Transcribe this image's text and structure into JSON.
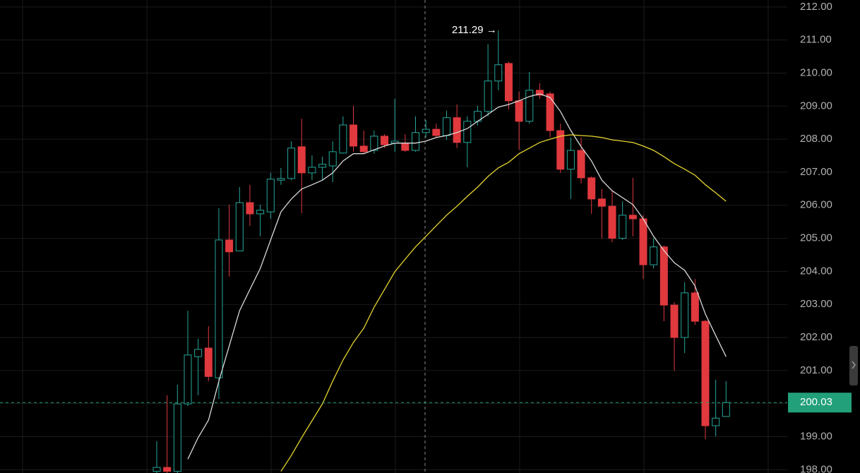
{
  "chart_data": {
    "type": "candlestick",
    "ylim": [
      197.9,
      212.21
    ],
    "yticks": [
      {
        "value": 198,
        "label": "198.00"
      },
      {
        "value": 199,
        "label": "199.00"
      },
      {
        "value": 200,
        "label": "200.00"
      },
      {
        "value": 201,
        "label": "201.00"
      },
      {
        "value": 202,
        "label": "202.00"
      },
      {
        "value": 203,
        "label": "203.00"
      },
      {
        "value": 204,
        "label": "204.00"
      },
      {
        "value": 205,
        "label": "205.00"
      },
      {
        "value": 206,
        "label": "206.00"
      },
      {
        "value": 207,
        "label": "207.00"
      },
      {
        "value": 208,
        "label": "208.00"
      },
      {
        "value": 209,
        "label": "209.00"
      },
      {
        "value": 210,
        "label": "210.00"
      },
      {
        "value": 211,
        "label": "211.00"
      },
      {
        "value": 212,
        "label": "212.00"
      }
    ],
    "grid": true,
    "up_color": "#26a69a",
    "down_color": "#e0393e",
    "open": [
      197.95,
      198.07,
      197.95,
      199.99,
      201.42,
      201.68,
      200.78,
      204.95,
      204.62,
      206.08,
      205.74,
      205.8,
      206.76,
      206.81,
      207.77,
      206.98,
      207.15,
      207.19,
      207.58,
      208.43,
      207.79,
      207.66,
      208.09,
      207.88,
      207.88,
      207.66,
      208.2,
      208.3,
      208.11,
      208.65,
      207.9,
      208.54,
      208.84,
      209.76,
      210.29,
      209.16,
      208.54,
      209.48,
      209.37,
      208.26,
      207.09,
      207.66,
      206.83,
      206.19,
      205.97,
      205.0,
      205.7,
      205.59,
      204.2,
      204.74,
      202.98,
      202.0,
      203.35,
      202.49,
      199.33,
      199.61
    ],
    "high": [
      198.86,
      200.25,
      200.57,
      202.81,
      201.96,
      202.34,
      205.91,
      206.02,
      206.55,
      206.62,
      206.02,
      206.98,
      207.13,
      207.94,
      208.62,
      207.51,
      207.47,
      207.94,
      208.69,
      209.01,
      208.26,
      208.26,
      208.15,
      209.22,
      208.15,
      208.69,
      208.58,
      208.47,
      208.86,
      209.05,
      208.69,
      209.01,
      210.87,
      211.29,
      210.35,
      209.44,
      210.03,
      209.69,
      209.44,
      208.47,
      208.05,
      208.05,
      206.87,
      206.49,
      206.44,
      206.12,
      206.83,
      205.7,
      205.01,
      204.78,
      203.07,
      203.67,
      203.77,
      202.53,
      200.72,
      200.68
    ],
    "low": [
      197.9,
      197.9,
      197.9,
      199.93,
      200.25,
      200.68,
      200.14,
      203.84,
      204.62,
      205.38,
      205.06,
      205.59,
      206.62,
      206.76,
      205.76,
      206.76,
      206.76,
      206.7,
      207.56,
      207.62,
      207.58,
      207.56,
      207.73,
      207.62,
      207.62,
      207.62,
      208.05,
      208.05,
      207.98,
      207.73,
      207.15,
      208.41,
      208.69,
      209.48,
      208.9,
      207.68,
      208.47,
      209.22,
      208.05,
      206.98,
      206.19,
      206.66,
      205.74,
      205.0,
      204.88,
      204.95,
      205.06,
      203.77,
      204.09,
      202.49,
      200.99,
      201.53,
      202.38,
      198.92,
      199.01,
      199.61
    ],
    "close": [
      198.07,
      197.95,
      199.99,
      201.47,
      201.64,
      200.82,
      204.95,
      204.59,
      206.08,
      205.74,
      205.85,
      206.79,
      206.81,
      207.73,
      206.98,
      207.15,
      207.24,
      207.62,
      208.43,
      207.79,
      207.62,
      208.09,
      207.83,
      207.94,
      207.66,
      208.2,
      208.3,
      208.11,
      208.65,
      207.9,
      208.54,
      208.84,
      209.76,
      210.25,
      209.16,
      208.54,
      209.48,
      209.33,
      208.26,
      207.09,
      207.66,
      206.83,
      206.19,
      205.97,
      205.0,
      205.7,
      205.59,
      204.2,
      204.74,
      202.98,
      202.0,
      203.35,
      202.49,
      199.33,
      199.56,
      200.03
    ],
    "lines": [
      {
        "color": "#d9d9d9",
        "values": [
          null,
          null,
          null,
          198.32,
          198.97,
          199.5,
          200.68,
          201.74,
          202.81,
          203.45,
          204.09,
          204.95,
          205.8,
          206.19,
          206.49,
          206.62,
          206.76,
          206.98,
          207.34,
          207.56,
          207.56,
          207.68,
          207.79,
          207.88,
          207.88,
          207.88,
          207.94,
          208.05,
          208.11,
          208.2,
          208.32,
          208.54,
          208.75,
          208.97,
          209.05,
          209.16,
          209.29,
          209.37,
          209.26,
          208.84,
          208.26,
          207.77,
          207.34,
          206.76,
          206.44,
          206.23,
          206.02,
          205.59,
          205.06,
          204.63,
          204.26,
          204.03,
          203.56,
          202.71,
          202.06,
          201.42
        ]
      },
      {
        "color": "#e6d430",
        "values": [
          null,
          null,
          null,
          null,
          null,
          null,
          null,
          null,
          null,
          null,
          null,
          null,
          197.95,
          198.43,
          198.97,
          199.48,
          199.99,
          200.68,
          201.32,
          201.85,
          202.28,
          202.92,
          203.45,
          203.99,
          204.37,
          204.74,
          205.06,
          205.38,
          205.7,
          205.97,
          206.27,
          206.55,
          206.87,
          207.13,
          207.3,
          207.56,
          207.73,
          207.9,
          208.0,
          208.09,
          208.13,
          208.11,
          208.09,
          208.05,
          207.98,
          207.94,
          207.9,
          207.79,
          207.66,
          207.47,
          207.26,
          207.09,
          206.91,
          206.62,
          206.38,
          206.12
        ]
      }
    ],
    "high_marker": {
      "value": 211.29,
      "label": "211.29 →",
      "index": 33
    },
    "last_price": {
      "value": 200.03,
      "label": "200.03",
      "color": "#22a079"
    }
  }
}
